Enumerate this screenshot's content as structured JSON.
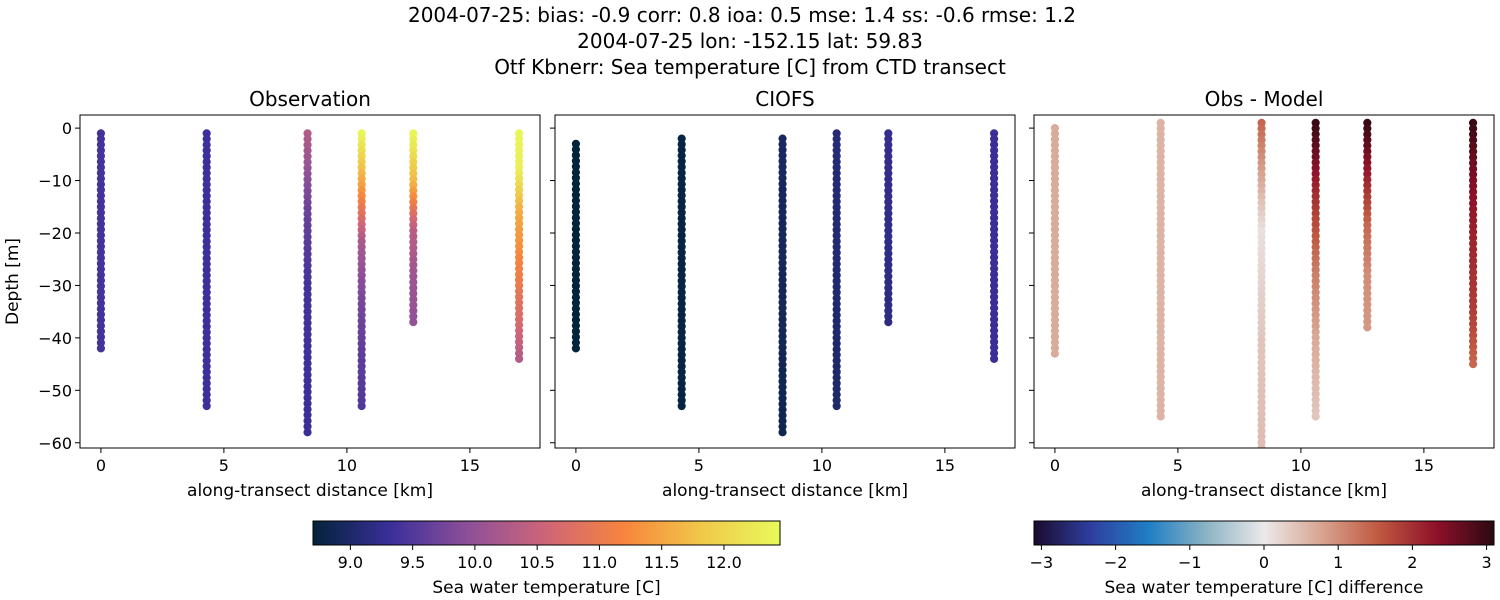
{
  "figure": {
    "title_lines": [
      "2004-07-25: bias: -0.9  corr: 0.8  ioa: 0.5  mse: 1.4  ss: -0.6  rmse: 1.2",
      "2004-07-25 lon: -152.15 lat: 59.83",
      "Otf Kbnerr: Sea temperature [C] from CTD transect"
    ]
  },
  "chart_data": [
    {
      "type": "scatter",
      "title": "Observation",
      "xlabel": "along-transect distance [km]",
      "ylabel": "Depth [m]",
      "xlim": [
        -0.85,
        17.85
      ],
      "ylim": [
        -61,
        2.5
      ],
      "xticks": [
        0,
        5,
        10,
        15
      ],
      "yticks": [
        0,
        -10,
        -20,
        -30,
        -40,
        -50,
        -60
      ],
      "colorbar": "temperature",
      "profiles": [
        {
          "x": 0.0,
          "depth_top": -1,
          "depth_bottom": -42,
          "values_top_to_bottom": [
            9.4,
            9.4
          ]
        },
        {
          "x": 4.3,
          "depth_top": -1,
          "depth_bottom": -53,
          "values_top_to_bottom": [
            9.35,
            9.35
          ]
        },
        {
          "x": 8.4,
          "depth_top": -1,
          "depth_bottom": -58,
          "values_top_to_bottom": [
            10.3,
            9.7,
            9.4,
            9.35,
            9.3
          ]
        },
        {
          "x": 10.6,
          "depth_top": -1,
          "depth_bottom": -53,
          "values_top_to_bottom": [
            12.4,
            11.4,
            10.2,
            9.8,
            9.6,
            9.5
          ]
        },
        {
          "x": 12.7,
          "depth_top": -1,
          "depth_bottom": -37,
          "values_top_to_bottom": [
            12.4,
            11.7,
            10.4,
            10.1,
            10.0
          ]
        },
        {
          "x": 17.0,
          "depth_top": -1,
          "depth_bottom": -44,
          "values_top_to_bottom": [
            12.4,
            12.3,
            11.6,
            11.3,
            11.0,
            10.7,
            10.3
          ]
        }
      ]
    },
    {
      "type": "scatter",
      "title": "CIOFS",
      "xlabel": "along-transect distance [km]",
      "xlim": [
        -0.85,
        17.85
      ],
      "ylim": [
        -61,
        2.5
      ],
      "xticks": [
        0,
        5,
        10,
        15
      ],
      "colorbar": "temperature",
      "profiles": [
        {
          "x": 0.0,
          "depth_top": -3,
          "depth_bottom": -42,
          "values_top_to_bottom": [
            8.7,
            8.7
          ]
        },
        {
          "x": 4.3,
          "depth_top": -2,
          "depth_bottom": -53,
          "values_top_to_bottom": [
            8.75,
            8.75
          ]
        },
        {
          "x": 8.4,
          "depth_top": -2,
          "depth_bottom": -58,
          "values_top_to_bottom": [
            8.95,
            8.85
          ]
        },
        {
          "x": 10.6,
          "depth_top": -1,
          "depth_bottom": -53,
          "values_top_to_bottom": [
            9.1,
            9.0
          ]
        },
        {
          "x": 12.7,
          "depth_top": -1,
          "depth_bottom": -37,
          "values_top_to_bottom": [
            9.25,
            9.15
          ]
        },
        {
          "x": 17.0,
          "depth_top": -1,
          "depth_bottom": -44,
          "values_top_to_bottom": [
            9.3,
            9.3
          ]
        }
      ]
    },
    {
      "type": "scatter",
      "title": "Obs - Model",
      "xlabel": "along-transect distance [km]",
      "xlim": [
        -0.85,
        17.85
      ],
      "ylim": [
        -61,
        2.5
      ],
      "xticks": [
        0,
        5,
        10,
        15
      ],
      "colorbar": "difference",
      "profiles": [
        {
          "x": 0.0,
          "depth_top": 0,
          "depth_bottom": -43,
          "values_top_to_bottom": [
            0.7,
            0.7
          ]
        },
        {
          "x": 4.3,
          "depth_top": 1,
          "depth_bottom": -55,
          "values_top_to_bottom": [
            0.6,
            0.6
          ]
        },
        {
          "x": 8.4,
          "depth_top": 1,
          "depth_bottom": -61,
          "values_top_to_bottom": [
            1.4,
            0.1,
            0.4,
            0.5
          ]
        },
        {
          "x": 10.6,
          "depth_top": 1,
          "depth_bottom": -55,
          "values_top_to_bottom": [
            3.0,
            2.0,
            1.2,
            0.7,
            0.4
          ]
        },
        {
          "x": 12.7,
          "depth_top": 1,
          "depth_bottom": -38,
          "values_top_to_bottom": [
            3.0,
            2.2,
            1.4,
            1.0,
            0.9
          ]
        },
        {
          "x": 17.0,
          "depth_top": 1,
          "depth_bottom": -45,
          "values_top_to_bottom": [
            3.0,
            2.5,
            2.2,
            2.0,
            1.8,
            1.4
          ]
        }
      ]
    }
  ],
  "colorbars": {
    "temperature": {
      "label": "Sea water temperature [C]",
      "range": [
        8.7,
        12.45
      ],
      "ticks": [
        9.0,
        9.5,
        10.0,
        10.5,
        11.0,
        11.5,
        12.0
      ],
      "tick_labels": [
        "9.0",
        "9.5",
        "10.0",
        "10.5",
        "11.0",
        "11.5",
        "12.0"
      ],
      "colors": [
        "#03233a",
        "#3b2f9a",
        "#8e5099",
        "#cf6578",
        "#f7853c",
        "#f0c84a",
        "#e8fa5b"
      ]
    },
    "difference": {
      "label": "Sea water temperature [C] difference",
      "range": [
        -3.1,
        3.1
      ],
      "ticks": [
        -3,
        -2,
        -1,
        0,
        1,
        2,
        3
      ],
      "tick_labels": [
        "−3",
        "−2",
        "−1",
        "0",
        "1",
        "2",
        "3"
      ],
      "colors": [
        "#1b0b2e",
        "#2f3fa0",
        "#1f7fc4",
        "#8cb3c4",
        "#ebe9ea",
        "#d8a491",
        "#c05840",
        "#8e1129",
        "#2a0911"
      ]
    }
  }
}
